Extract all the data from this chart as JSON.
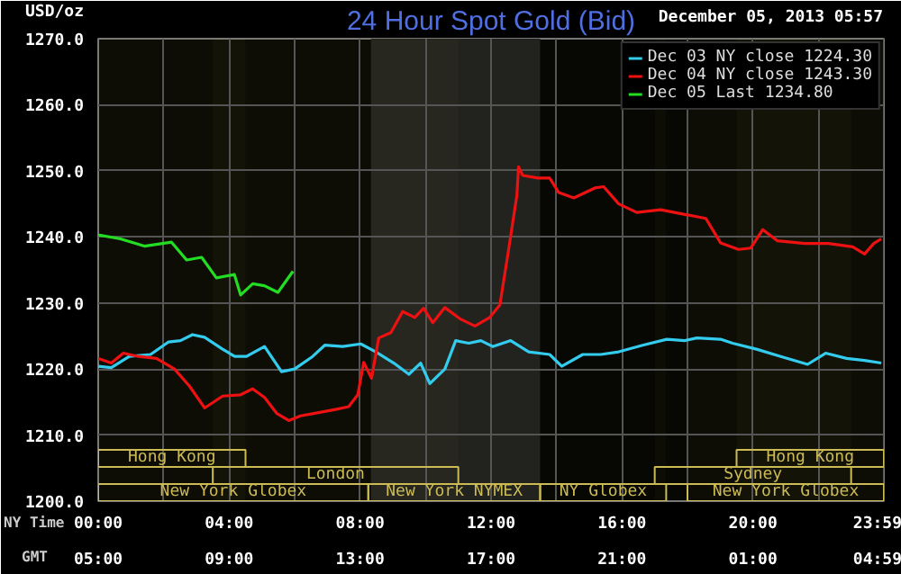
{
  "chart_data": {
    "type": "line",
    "title": "24 Hour Spot Gold (Bid)",
    "subtitle": "December 05, 2013 05:57",
    "ylabel": "USD/oz",
    "xlabel": "NY Time",
    "x2label": "GMT",
    "xlim": [
      0,
      24
    ],
    "xticks": [
      {
        "value": 0,
        "label": "00:00"
      },
      {
        "value": 2,
        "label": null
      },
      {
        "value": 4,
        "label": "04:00"
      },
      {
        "value": 6,
        "label": null
      },
      {
        "value": 8,
        "label": "08:00"
      },
      {
        "value": 10,
        "label": null
      },
      {
        "value": 12,
        "label": "12:00"
      },
      {
        "value": 14,
        "label": null
      },
      {
        "value": 16,
        "label": "16:00"
      },
      {
        "value": 18,
        "label": null
      },
      {
        "value": 20,
        "label": "20:00"
      },
      {
        "value": 22,
        "label": null
      },
      {
        "value": 23.983,
        "label": "23:59"
      }
    ],
    "x2lim": [
      "2013-12-05T05:00",
      "2013-12-06T05:00"
    ],
    "x2ticks": [
      {
        "value": "2013-12-05T05:00",
        "label": "05:00"
      },
      {
        "value": "2013-12-05T09:00",
        "label": "09:00"
      },
      {
        "value": "2013-12-05T13:00",
        "label": "13:00"
      },
      {
        "value": "2013-12-05T17:00",
        "label": "17:00"
      },
      {
        "value": "2013-12-05T21:00",
        "label": "21:00"
      },
      {
        "value": "2013-12-06T01:00",
        "label": "01:00"
      },
      {
        "value": "2013-12-06T04:59",
        "label": "04:59"
      }
    ],
    "ylim": [
      1200,
      1270
    ],
    "yticks": [
      {
        "value": 1200,
        "label": "1200.0"
      },
      {
        "value": 1210,
        "label": "1210.0"
      },
      {
        "value": 1220,
        "label": "1220.0"
      },
      {
        "value": 1230,
        "label": "1230.0"
      },
      {
        "value": 1240,
        "label": "1240.0"
      },
      {
        "value": 1250,
        "label": "1250.0"
      },
      {
        "value": 1260,
        "label": "1260.0"
      },
      {
        "value": 1270,
        "label": "1270.0"
      }
    ],
    "grid": true,
    "legend": "top right",
    "line_style": "solid",
    "series": [
      {
        "name": "Dec 03 NY close 1224.30",
        "color": "#33ccee",
        "x": [
          0,
          0.4,
          0.95,
          1.6,
          2.15,
          2.51,
          2.88,
          3.25,
          3.8,
          4.17,
          4.53,
          5.08,
          5.6,
          6.0,
          6.55,
          6.92,
          7.47,
          8.02,
          8.48,
          9.03,
          9.49,
          9.85,
          10.13,
          10.59,
          10.92,
          11.32,
          11.69,
          12.05,
          12.6,
          13.15,
          13.79,
          14.16,
          14.8,
          15.35,
          15.9,
          16.63,
          17.37,
          17.92,
          18.29,
          19.01,
          19.38,
          20.11,
          20.85,
          21.67,
          22.22,
          22.86,
          23.41,
          23.92
        ],
        "values": [
          1220.4,
          1220.2,
          1221.9,
          1222.2,
          1224.1,
          1224.3,
          1225.2,
          1224.8,
          1223.0,
          1221.9,
          1221.9,
          1223.4,
          1219.6,
          1220.0,
          1221.9,
          1223.6,
          1223.4,
          1223.8,
          1222.6,
          1220.9,
          1219.2,
          1220.9,
          1217.8,
          1220.0,
          1224.3,
          1223.9,
          1224.3,
          1223.4,
          1224.3,
          1222.6,
          1222.2,
          1220.4,
          1222.2,
          1222.2,
          1222.6,
          1223.6,
          1224.5,
          1224.3,
          1224.7,
          1224.5,
          1223.9,
          1223.0,
          1221.9,
          1220.7,
          1222.4,
          1221.6,
          1221.3,
          1220.9
        ]
      },
      {
        "name": "Dec 04 NY close 1243.30",
        "color": "#ee1111",
        "x": [
          0,
          0.4,
          0.77,
          1.23,
          1.78,
          2.33,
          2.79,
          3.25,
          3.8,
          4.35,
          4.72,
          5.08,
          5.45,
          5.82,
          6.18,
          6.73,
          7.28,
          7.65,
          7.93,
          8.11,
          8.35,
          8.57,
          8.94,
          9.3,
          9.67,
          9.94,
          10.22,
          10.59,
          11.05,
          11.51,
          11.96,
          12.27,
          12.51,
          12.79,
          12.84,
          12.97,
          13.43,
          13.79,
          14.07,
          14.53,
          15.17,
          15.44,
          15.9,
          16.45,
          17.18,
          17.92,
          18.56,
          19.01,
          19.56,
          19.93,
          20.3,
          20.75,
          21.58,
          22.31,
          23.05,
          23.41,
          23.69,
          23.92
        ],
        "values": [
          1221.6,
          1220.9,
          1222.4,
          1221.9,
          1221.6,
          1220.0,
          1217.4,
          1214.1,
          1215.9,
          1216.1,
          1217.0,
          1215.7,
          1213.3,
          1212.2,
          1212.9,
          1213.4,
          1213.9,
          1214.3,
          1216.1,
          1221.0,
          1218.6,
          1224.7,
          1225.5,
          1228.7,
          1227.8,
          1229.2,
          1227.0,
          1229.3,
          1227.6,
          1226.5,
          1227.8,
          1229.7,
          1237.2,
          1246.3,
          1250.6,
          1249.3,
          1248.9,
          1248.9,
          1246.7,
          1245.9,
          1247.4,
          1247.6,
          1245.0,
          1243.7,
          1244.1,
          1243.4,
          1242.8,
          1239.1,
          1238.1,
          1238.3,
          1241.1,
          1239.4,
          1239.0,
          1239.0,
          1238.5,
          1237.4,
          1239.0,
          1239.7
        ]
      },
      {
        "name": "Dec 05 Last 1234.80",
        "color": "#22dd22",
        "x": [
          0,
          0.68,
          1.41,
          2.24,
          2.7,
          3.16,
          3.61,
          4.16,
          4.35,
          4.72,
          5.08,
          5.49,
          5.95
        ],
        "values": [
          1240.3,
          1239.7,
          1238.6,
          1239.2,
          1236.5,
          1236.9,
          1233.8,
          1234.3,
          1231.2,
          1232.9,
          1232.6,
          1231.6,
          1234.8
        ]
      }
    ],
    "bands": [
      {
        "axis": "x",
        "from": 8.33,
        "to": 13.5,
        "label": null,
        "color": "#1c1c1c"
      },
      {
        "axis": "x",
        "from": 0,
        "to": 8.25,
        "label": "New York Globex",
        "color": "#ccbb55"
      },
      {
        "axis": "x",
        "from": 8.25,
        "to": 13.5,
        "label": "New York NYMEX",
        "color": "#ccbb55"
      },
      {
        "axis": "x",
        "from": 13.5,
        "to": 17.35,
        "label": "NY Globex",
        "color": "#ccbb55"
      },
      {
        "axis": "x",
        "from": 18.0,
        "to": 24,
        "label": "New York Globex",
        "color": "#ccbb55"
      },
      {
        "axis": "x",
        "from": 3.5,
        "to": 11.0,
        "label": "London",
        "color": "#ccbb55"
      },
      {
        "axis": "x",
        "from": 17.0,
        "to": 23.0,
        "label": "Sydney",
        "color": "#ccbb55"
      },
      {
        "axis": "x",
        "from": 0,
        "to": 4.5,
        "label": "Hong Kong",
        "color": "#ccbb55"
      },
      {
        "axis": "x",
        "from": 19.5,
        "to": 24,
        "label": "Hong Kong",
        "color": "#ccbb55"
      }
    ]
  }
}
